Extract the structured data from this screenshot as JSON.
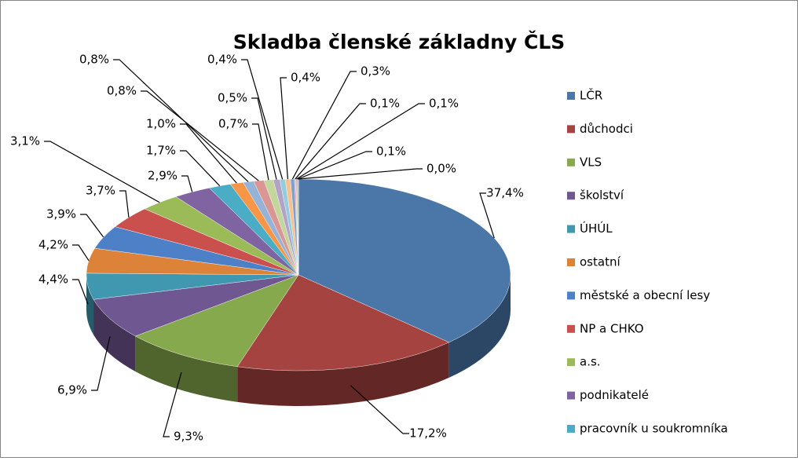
{
  "chart_data": {
    "type": "pie3d",
    "title": "Skladba členské základny ČLS",
    "categories": [
      "LČR",
      "důchodci",
      "VLS",
      "školství",
      "ÚHÚL",
      "ostatní",
      "městské a obecní lesy",
      "NP a CHKO",
      "a.s.",
      "podnikatelé",
      "pracovník u soukromníka",
      null,
      null,
      null,
      null,
      null,
      null,
      null,
      null,
      null,
      null,
      null,
      null
    ],
    "values": [
      37.4,
      17.2,
      9.3,
      6.9,
      4.4,
      4.2,
      3.9,
      3.7,
      3.1,
      2.9,
      1.7,
      1.0,
      0.8,
      0.8,
      0.7,
      0.5,
      0.4,
      0.4,
      0.3,
      0.1,
      0.1,
      0.1,
      0.0
    ],
    "value_labels": [
      "37,4%",
      "17,2%",
      "9,3%",
      "6,9%",
      "4,4%",
      "4,2%",
      "3,9%",
      "3,7%",
      "3,1%",
      "2,9%",
      "1,7%",
      "1,0%",
      "0,8%",
      "0,8%",
      "0,7%",
      "0,5%",
      "0,4%",
      "0,4%",
      "0,3%",
      "0,1%",
      "0,1%",
      "0,1%",
      "0,0%"
    ],
    "colors": [
      "#4a76a8",
      "#a54340",
      "#86a94d",
      "#6f5791",
      "#3f98b0",
      "#dd8339",
      "#4d80c6",
      "#c9504d",
      "#9bbb59",
      "#8064a2",
      "#4bacc6",
      "#f79646",
      "#95b3d7",
      "#d99694",
      "#c3d69b",
      "#b3a2c7",
      "#93cddd",
      "#fac090",
      "#7fa0cc",
      "#e2a3a1",
      "#b7d08c",
      "#a08fbd",
      "#f9b889"
    ],
    "legend": "right"
  }
}
